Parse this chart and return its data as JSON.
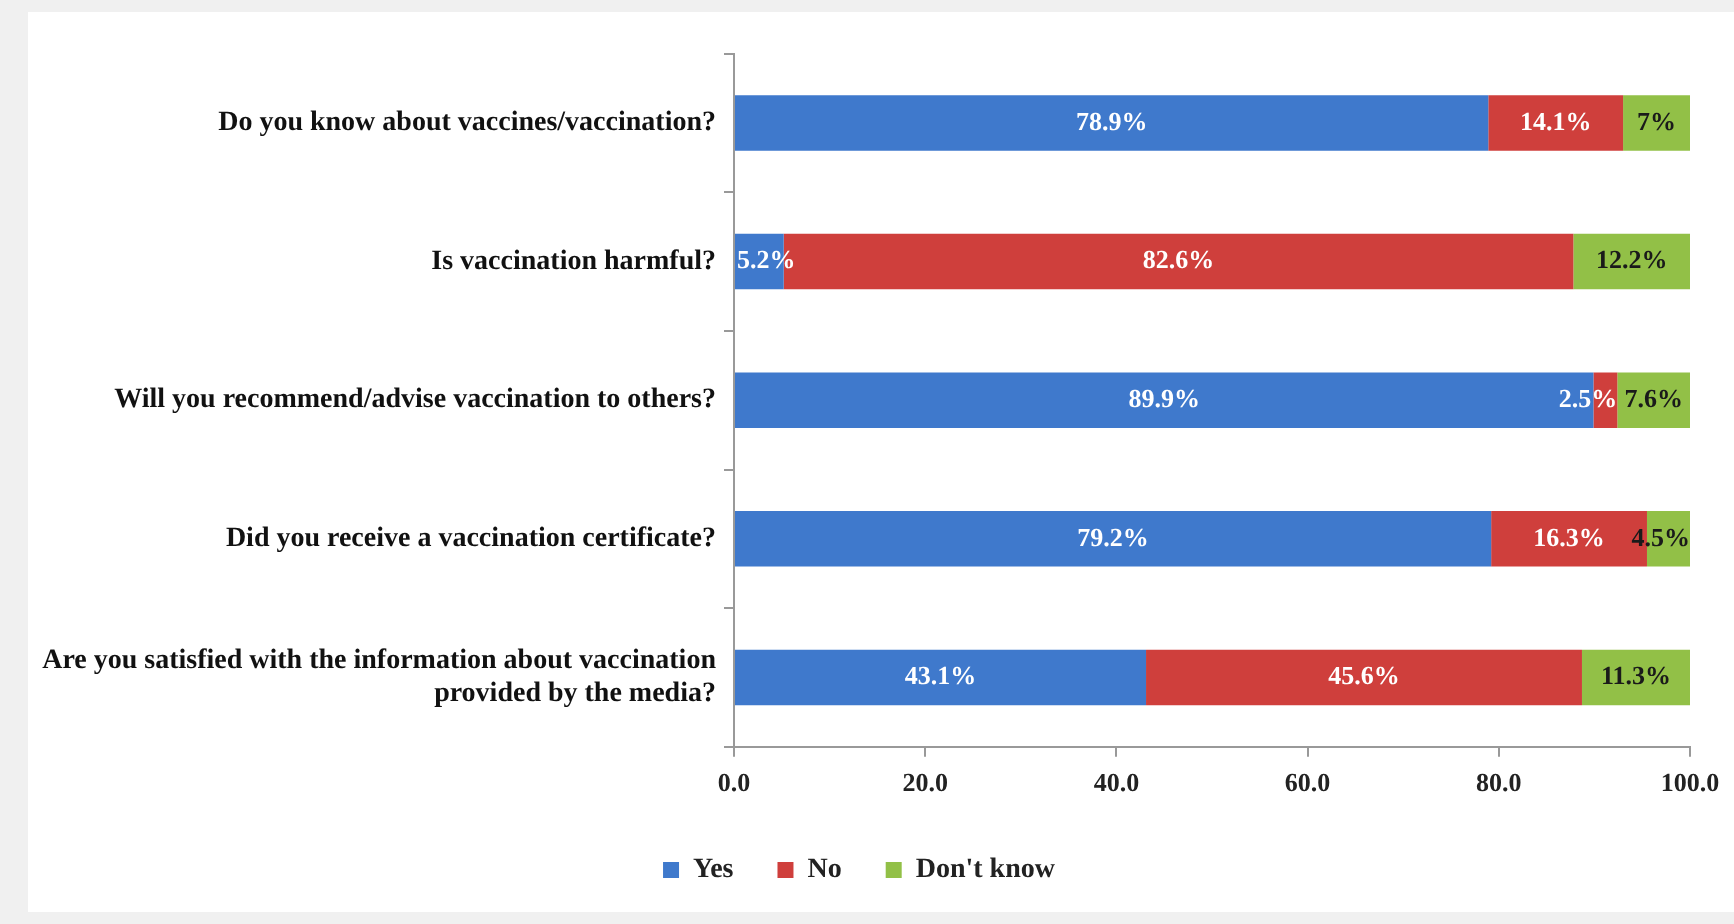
{
  "chart_data": {
    "type": "bar",
    "orientation": "horizontal",
    "stacked": true,
    "categories": [
      "Do you know about vaccines/vaccination?",
      "Is vaccination harmful?",
      "Will you recommend/advise vaccination to others?",
      "Did you receive a vaccination certificate?",
      "Are you satisfied with the information about vaccination provided by the media?"
    ],
    "series": [
      {
        "name": "Yes",
        "color": "#3f79cc",
        "values": [
          78.9,
          5.2,
          89.9,
          79.2,
          43.1
        ],
        "value_labels": [
          "78.9%",
          "5.2%",
          "89.9%",
          "79.2%",
          "43.1%"
        ]
      },
      {
        "name": "No",
        "color": "#cf3f3c",
        "values": [
          14.1,
          82.6,
          2.5,
          16.3,
          45.6
        ],
        "value_labels": [
          "14.1%",
          "82.6%",
          "2.5%",
          "16.3%",
          "45.6%"
        ]
      },
      {
        "name": "Don't know",
        "color": "#92c047",
        "values": [
          7,
          12.2,
          7.6,
          4.5,
          11.3
        ],
        "value_labels": [
          "7%",
          "12.2%",
          "7.6%",
          "4.5%",
          "11.3%"
        ]
      }
    ],
    "xlim": [
      0,
      100
    ],
    "xticks": [
      {
        "value": 0,
        "label": "0.0"
      },
      {
        "value": 20,
        "label": "20.0"
      },
      {
        "value": 40,
        "label": "40.0"
      },
      {
        "value": 60,
        "label": "60.0"
      },
      {
        "value": 80,
        "label": "80.0"
      },
      {
        "value": 100,
        "label": "100.0"
      }
    ],
    "grid": false,
    "legend": "bottom"
  }
}
